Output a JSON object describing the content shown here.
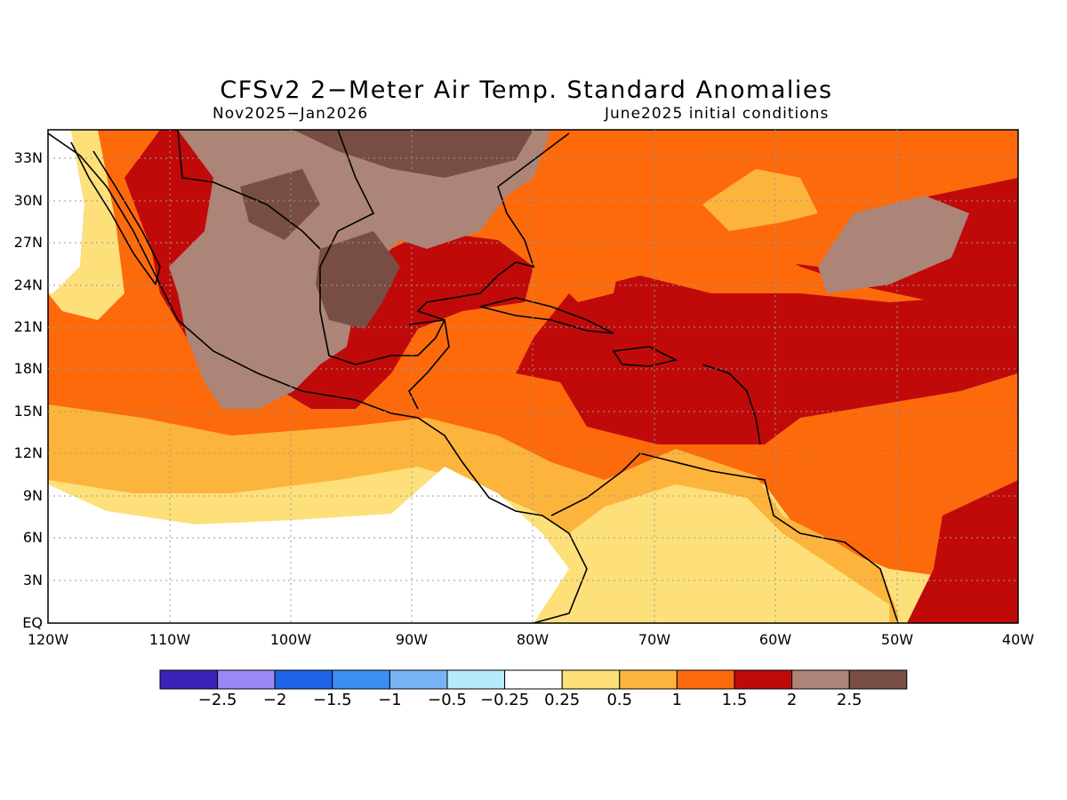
{
  "title": "CFSv2 2−Meter Air Temp. Standard Anomalies",
  "period": "Nov2025−Jan2026",
  "init": "June2025 initial conditions",
  "lat_labels": [
    "33N",
    "30N",
    "27N",
    "24N",
    "21N",
    "18N",
    "15N",
    "12N",
    "9N",
    "6N",
    "3N",
    "EQ"
  ],
  "lon_labels": [
    "120W",
    "110W",
    "100W",
    "90W",
    "80W",
    "70W",
    "60W",
    "50W",
    "40W"
  ],
  "colorbar": {
    "colors": [
      "#3a24b8",
      "#9b87f5",
      "#1e64e8",
      "#3c8ff2",
      "#78b4f5",
      "#b4ecfc",
      "#ffffff",
      "#fde07a",
      "#fdb43c",
      "#fc6a0c",
      "#c00a0a",
      "#ac8478",
      "#784e44"
    ],
    "labels": [
      "−2.5",
      "−2",
      "−1.5",
      "−1",
      "−0.5",
      "−0.25",
      "0.25",
      "0.5",
      "1",
      "1.5",
      "2",
      "2.5"
    ]
  },
  "map_colors": {
    "c0": "#ffffff",
    "c05": "#fde07a",
    "c1": "#fdb43c",
    "c15": "#fc6a0c",
    "c2": "#c00a0a",
    "c25": "#ac8478",
    "c3": "#784e44"
  }
}
